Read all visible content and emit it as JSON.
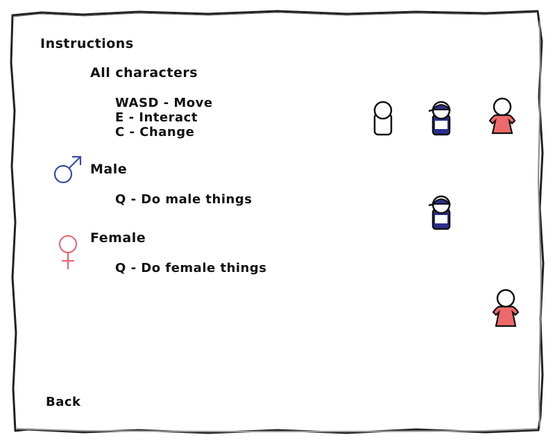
{
  "screen": {
    "title": "Instructions",
    "back_label": "Back"
  },
  "sections": {
    "all": {
      "heading": "All characters",
      "lines": [
        "WASD - Move",
        "E - Interact",
        "C - Change"
      ]
    },
    "male": {
      "heading": "Male",
      "lines": [
        "Q - Do male things"
      ],
      "symbol_icon": "male-symbol-icon",
      "symbol_color": "#3b4aa8"
    },
    "female": {
      "heading": "Female",
      "lines": [
        "Q - Do female things"
      ],
      "symbol_icon": "female-symbol-icon",
      "symbol_color": "#e8606e"
    }
  },
  "colors": {
    "paper": "#ffffff",
    "paper_edge": "#2a2a2a",
    "male_body": "#2b2f8c",
    "female_body": "#ee6a6a",
    "neutral_body": "#ffffff"
  }
}
